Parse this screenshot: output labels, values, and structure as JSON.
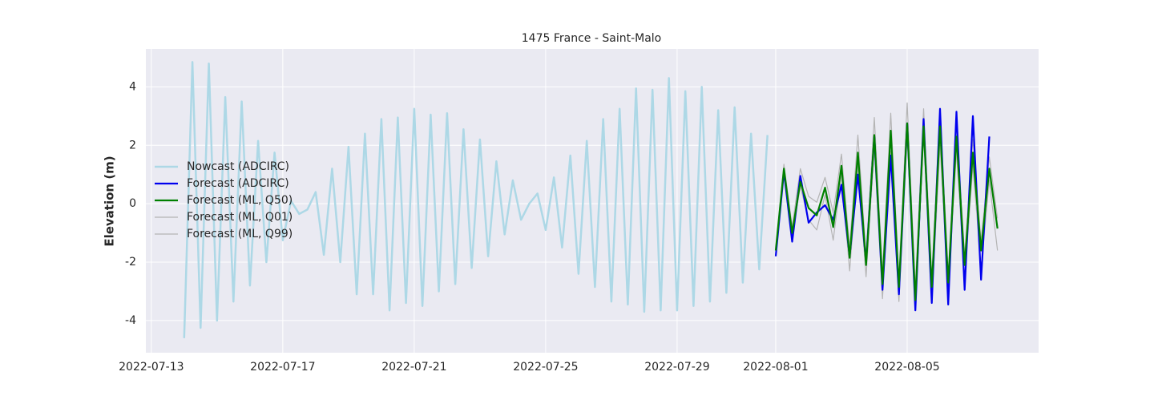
{
  "chart_data": {
    "type": "line",
    "title": "1475 France - Saint-Malo",
    "y_label": "Elevation (m)",
    "xlim": [
      "2022-07-12 20:00",
      "2022-08-09 00:00"
    ],
    "xticks": [
      "2022-07-13",
      "2022-07-17",
      "2022-07-21",
      "2022-07-25",
      "2022-07-29",
      "2022-08-01",
      "2022-08-05"
    ],
    "ylim": [
      -5.1,
      5.3
    ],
    "yticks": [
      -4,
      -2,
      0,
      2,
      4
    ],
    "grid": true,
    "legend": "left",
    "series": [
      {
        "name": "Nowcast (ADCIRC)",
        "color": "#add8e6",
        "x": [
          "2022-07-14 00:00",
          "2022-07-14 06:00",
          "2022-07-14 12:00",
          "2022-07-14 18:00",
          "2022-07-15 00:00",
          "2022-07-15 06:00",
          "2022-07-15 12:00",
          "2022-07-15 18:00",
          "2022-07-16 00:00",
          "2022-07-16 06:00",
          "2022-07-16 12:00",
          "2022-07-16 18:00",
          "2022-07-17 00:00",
          "2022-07-17 06:00",
          "2022-07-17 12:00",
          "2022-07-17 18:00",
          "2022-07-18 00:00",
          "2022-07-18 06:00",
          "2022-07-18 12:00",
          "2022-07-18 18:00",
          "2022-07-19 00:00",
          "2022-07-19 06:00",
          "2022-07-19 12:00",
          "2022-07-19 18:00",
          "2022-07-20 00:00",
          "2022-07-20 06:00",
          "2022-07-20 12:00",
          "2022-07-20 18:00",
          "2022-07-21 00:00",
          "2022-07-21 06:00",
          "2022-07-21 12:00",
          "2022-07-21 18:00",
          "2022-07-22 00:00",
          "2022-07-22 06:00",
          "2022-07-22 12:00",
          "2022-07-22 18:00",
          "2022-07-23 00:00",
          "2022-07-23 06:00",
          "2022-07-23 12:00",
          "2022-07-23 18:00",
          "2022-07-24 00:00",
          "2022-07-24 06:00",
          "2022-07-24 12:00",
          "2022-07-24 18:00",
          "2022-07-25 00:00",
          "2022-07-25 06:00",
          "2022-07-25 12:00",
          "2022-07-25 18:00",
          "2022-07-26 00:00",
          "2022-07-26 06:00",
          "2022-07-26 12:00",
          "2022-07-26 18:00",
          "2022-07-27 00:00",
          "2022-07-27 06:00",
          "2022-07-27 12:00",
          "2022-07-27 18:00",
          "2022-07-28 00:00",
          "2022-07-28 06:00",
          "2022-07-28 12:00",
          "2022-07-28 18:00",
          "2022-07-29 00:00",
          "2022-07-29 06:00",
          "2022-07-29 12:00",
          "2022-07-29 18:00",
          "2022-07-30 00:00",
          "2022-07-30 06:00",
          "2022-07-30 12:00",
          "2022-07-30 18:00",
          "2022-07-31 00:00",
          "2022-07-31 06:00",
          "2022-07-31 12:00",
          "2022-07-31 18:00"
        ],
        "values": [
          -4.6,
          4.85,
          -4.25,
          4.8,
          -4.0,
          3.65,
          -3.35,
          3.5,
          -2.8,
          2.15,
          -2.0,
          1.75,
          -1.25,
          0.1,
          -0.35,
          -0.2,
          0.4,
          -1.75,
          1.2,
          -2.0,
          1.95,
          -3.1,
          2.4,
          -3.1,
          2.9,
          -3.65,
          2.95,
          -3.4,
          3.25,
          -3.5,
          3.05,
          -3.0,
          3.1,
          -2.75,
          2.55,
          -2.2,
          2.2,
          -1.8,
          1.45,
          -1.05,
          0.8,
          -0.55,
          0.0,
          0.35,
          -0.9,
          0.9,
          -1.5,
          1.65,
          -2.4,
          2.15,
          -2.85,
          2.9,
          -3.35,
          3.25,
          -3.45,
          3.95,
          -3.7,
          3.9,
          -3.65,
          4.3,
          -3.65,
          3.85,
          -3.5,
          4.0,
          -3.35,
          3.2,
          -3.05,
          3.3,
          -2.7,
          2.4,
          -2.25,
          2.35
        ]
      },
      {
        "name": "Forecast (ADCIRC)",
        "color": "#0000ee",
        "x": [
          "2022-08-01 00:00",
          "2022-08-01 06:00",
          "2022-08-01 12:00",
          "2022-08-01 18:00",
          "2022-08-02 00:00",
          "2022-08-02 06:00",
          "2022-08-02 12:00",
          "2022-08-02 18:00",
          "2022-08-03 00:00",
          "2022-08-03 06:00",
          "2022-08-03 12:00",
          "2022-08-03 18:00",
          "2022-08-04 00:00",
          "2022-08-04 06:00",
          "2022-08-04 12:00",
          "2022-08-04 18:00",
          "2022-08-05 00:00",
          "2022-08-05 06:00",
          "2022-08-05 12:00",
          "2022-08-05 18:00",
          "2022-08-06 00:00",
          "2022-08-06 06:00",
          "2022-08-06 12:00",
          "2022-08-06 18:00",
          "2022-08-07 00:00",
          "2022-08-07 06:00",
          "2022-08-07 12:00"
        ],
        "values": [
          -1.8,
          1.1,
          -1.3,
          0.95,
          -0.65,
          -0.3,
          -0.05,
          -0.55,
          0.65,
          -1.8,
          1.0,
          -2.0,
          2.3,
          -2.95,
          1.65,
          -3.1,
          2.75,
          -3.65,
          2.9,
          -3.4,
          3.25,
          -3.45,
          3.15,
          -2.95,
          3.0,
          -2.6,
          2.3
        ]
      },
      {
        "name": "Forecast (ML, Q50)",
        "color": "#008000",
        "x": [
          "2022-08-01 00:00",
          "2022-08-01 06:00",
          "2022-08-01 12:00",
          "2022-08-01 18:00",
          "2022-08-02 00:00",
          "2022-08-02 06:00",
          "2022-08-02 12:00",
          "2022-08-02 18:00",
          "2022-08-03 00:00",
          "2022-08-03 06:00",
          "2022-08-03 12:00",
          "2022-08-03 18:00",
          "2022-08-04 00:00",
          "2022-08-04 06:00",
          "2022-08-04 12:00",
          "2022-08-04 18:00",
          "2022-08-05 00:00",
          "2022-08-05 06:00",
          "2022-08-05 12:00",
          "2022-08-05 18:00",
          "2022-08-06 00:00",
          "2022-08-06 06:00",
          "2022-08-06 12:00",
          "2022-08-06 18:00",
          "2022-08-07 00:00",
          "2022-08-07 06:00",
          "2022-08-07 12:00",
          "2022-08-07 18:00"
        ],
        "values": [
          -1.6,
          1.2,
          -1.0,
          0.75,
          -0.15,
          -0.4,
          0.55,
          -0.8,
          1.3,
          -1.85,
          1.75,
          -2.1,
          2.35,
          -2.75,
          2.5,
          -2.85,
          2.75,
          -3.3,
          2.65,
          -2.85,
          2.65,
          -2.7,
          2.3,
          -2.1,
          1.75,
          -1.6,
          1.2,
          -0.85
        ]
      },
      {
        "name": "Forecast (ML, Q01)",
        "color": "#b4b4b4",
        "x": [
          "2022-08-01 00:00",
          "2022-08-01 06:00",
          "2022-08-01 12:00",
          "2022-08-01 18:00",
          "2022-08-02 00:00",
          "2022-08-02 06:00",
          "2022-08-02 12:00",
          "2022-08-02 18:00",
          "2022-08-03 00:00",
          "2022-08-03 06:00",
          "2022-08-03 12:00",
          "2022-08-03 18:00",
          "2022-08-04 00:00",
          "2022-08-04 06:00",
          "2022-08-04 12:00",
          "2022-08-04 18:00",
          "2022-08-05 00:00",
          "2022-08-05 06:00",
          "2022-08-05 12:00",
          "2022-08-05 18:00",
          "2022-08-06 00:00",
          "2022-08-06 06:00",
          "2022-08-06 12:00",
          "2022-08-06 18:00",
          "2022-08-07 00:00",
          "2022-08-07 06:00",
          "2022-08-07 12:00",
          "2022-08-07 18:00"
        ],
        "values": [
          -1.65,
          1.0,
          -1.1,
          0.6,
          -0.55,
          -0.9,
          0.3,
          -1.25,
          1.0,
          -2.3,
          1.3,
          -2.5,
          1.9,
          -3.25,
          1.8,
          -3.35,
          2.3,
          -3.6,
          2.3,
          -3.4,
          2.0,
          -3.0,
          1.8,
          -2.6,
          1.3,
          -2.2,
          0.8,
          -1.6
        ]
      },
      {
        "name": "Forecast (ML, Q99)",
        "color": "#b4b4b4",
        "x": [
          "2022-08-01 00:00",
          "2022-08-01 06:00",
          "2022-08-01 12:00",
          "2022-08-01 18:00",
          "2022-08-02 00:00",
          "2022-08-02 06:00",
          "2022-08-02 12:00",
          "2022-08-02 18:00",
          "2022-08-03 00:00",
          "2022-08-03 06:00",
          "2022-08-03 12:00",
          "2022-08-03 18:00",
          "2022-08-04 00:00",
          "2022-08-04 06:00",
          "2022-08-04 12:00",
          "2022-08-04 18:00",
          "2022-08-05 00:00",
          "2022-08-05 06:00",
          "2022-08-05 12:00",
          "2022-08-05 18:00",
          "2022-08-06 00:00",
          "2022-08-06 06:00",
          "2022-08-06 12:00",
          "2022-08-06 18:00",
          "2022-08-07 00:00",
          "2022-08-07 06:00",
          "2022-08-07 12:00",
          "2022-08-07 18:00"
        ],
        "values": [
          -1.55,
          1.35,
          -0.8,
          1.2,
          0.25,
          0.05,
          0.9,
          -0.3,
          1.7,
          -1.5,
          2.35,
          -1.8,
          2.95,
          -2.4,
          3.1,
          -2.6,
          3.45,
          -2.9,
          3.25,
          -2.55,
          3.2,
          -2.4,
          2.8,
          -1.8,
          2.2,
          -1.3,
          1.6,
          -0.5
        ]
      }
    ]
  }
}
